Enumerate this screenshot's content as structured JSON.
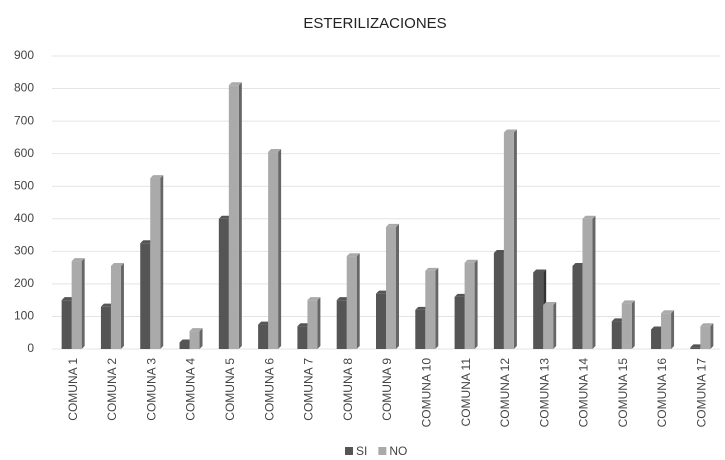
{
  "chart_data": {
    "type": "bar",
    "title": "ESTERILIZACIONES",
    "categories": [
      "COMUNA 1",
      "COMUNA 2",
      "COMUNA 3",
      "COMUNA 4",
      "COMUNA 5",
      "COMUNA 6",
      "COMUNA 7",
      "COMUNA 8",
      "COMUNA 9",
      "COMUNA 10",
      "COMUNA 11",
      "COMUNA 12",
      "COMUNA 13",
      "COMUNA 14",
      "COMUNA 15",
      "COMUNA 16",
      "COMUNA 17"
    ],
    "series": [
      {
        "name": "SI",
        "color": "#555555",
        "values": [
          150,
          130,
          325,
          20,
          400,
          75,
          70,
          150,
          170,
          120,
          160,
          295,
          235,
          255,
          85,
          60,
          5
        ]
      },
      {
        "name": "NO",
        "color": "#aaaaaa",
        "values": [
          270,
          255,
          525,
          55,
          810,
          605,
          150,
          285,
          375,
          240,
          265,
          665,
          135,
          400,
          140,
          110,
          70
        ]
      }
    ],
    "ylim": [
      0,
      900
    ],
    "yticks": [
      0,
      100,
      200,
      300,
      400,
      500,
      600,
      700,
      800,
      900
    ],
    "grid": true,
    "legend": "bottom"
  }
}
